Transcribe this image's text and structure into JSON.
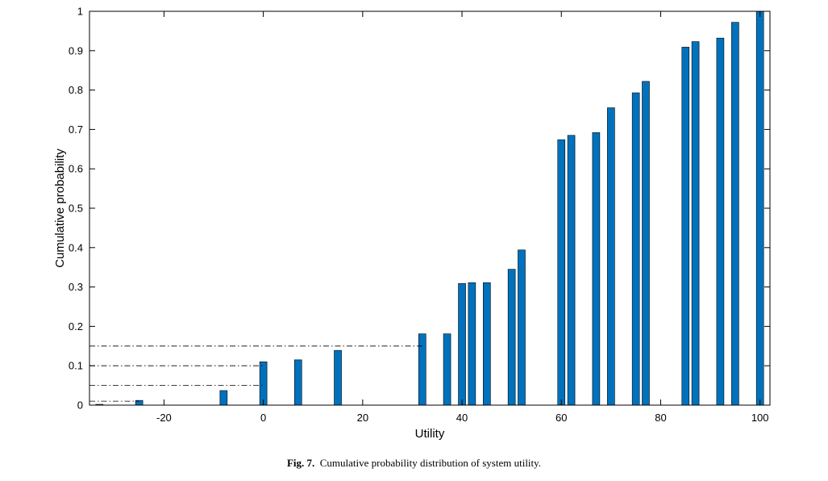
{
  "caption": {
    "label": "Fig. 7.",
    "text": "Cumulative probability distribution of system utility."
  },
  "chart_data": {
    "type": "bar",
    "title": "",
    "xlabel": "Utility",
    "ylabel": "Cumulative probability",
    "xlim": [
      -35,
      102
    ],
    "ylim": [
      0,
      1
    ],
    "xticks": [
      -20,
      0,
      20,
      40,
      60,
      80,
      100
    ],
    "xtick_labels": [
      "-20",
      "0",
      "20",
      "40",
      "60",
      "80",
      "100"
    ],
    "yticks": [
      0,
      0.1,
      0.2,
      0.3,
      0.4,
      0.5,
      0.6,
      0.7,
      0.8,
      0.9,
      1
    ],
    "ytick_labels": [
      "0",
      "0.1",
      "0.2",
      "0.3",
      "0.4",
      "0.5",
      "0.6",
      "0.7",
      "0.8",
      "0.9",
      "1"
    ],
    "grid": false,
    "bar_color": "#0072BD",
    "x": [
      -33,
      -25,
      -8,
      0,
      7,
      15,
      32,
      37,
      40,
      42,
      45,
      50,
      52,
      60,
      62,
      67,
      70,
      75,
      77,
      85,
      87,
      92,
      95,
      100
    ],
    "values": [
      0.002,
      0.012,
      0.037,
      0.11,
      0.115,
      0.139,
      0.181,
      0.181,
      0.309,
      0.311,
      0.311,
      0.345,
      0.394,
      0.674,
      0.685,
      0.692,
      0.755,
      0.793,
      0.822,
      0.909,
      0.923,
      0.932,
      0.972,
      1.0
    ],
    "reference_lines": [
      {
        "y": 0.01,
        "x_end": -25
      },
      {
        "y": 0.05,
        "x_end": 0
      },
      {
        "y": 0.1,
        "x_end": 0
      },
      {
        "y": 0.15,
        "x_end": 32
      }
    ]
  }
}
